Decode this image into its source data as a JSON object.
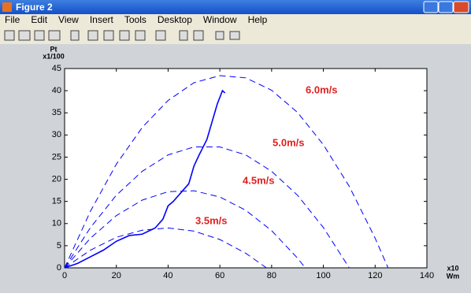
{
  "window": {
    "title": "Figure 2",
    "menu": [
      "File",
      "Edit",
      "View",
      "Insert",
      "Tools",
      "Desktop",
      "Window",
      "Help"
    ]
  },
  "chart_data": {
    "type": "line",
    "xlabel": [
      "x10",
      "Wm"
    ],
    "ylabel": [
      "Pt",
      "x1/100"
    ],
    "xlim": [
      0,
      140
    ],
    "xticks": [
      0,
      20,
      40,
      60,
      80,
      100,
      120,
      140
    ],
    "ylim": [
      0,
      45
    ],
    "yticks": [
      0,
      5,
      10,
      15,
      20,
      25,
      30,
      35,
      40,
      45
    ],
    "series": [
      {
        "color": "#0000ff",
        "linestyle": "dashed",
        "x": [
          0,
          10,
          20,
          30,
          40,
          50,
          60,
          70,
          80,
          90,
          100,
          110,
          120,
          125
        ],
        "values": [
          0,
          12.8,
          23.4,
          31.7,
          37.8,
          41.8,
          43.4,
          42.9,
          40.1,
          35.1,
          27.8,
          18.4,
          6.7,
          0
        ]
      },
      {
        "color": "#0000ff",
        "linestyle": "dashed",
        "x": [
          0,
          10,
          20,
          30,
          40,
          50,
          60,
          70,
          80,
          90,
          100,
          110
        ],
        "values": [
          0,
          9.1,
          16.4,
          21.8,
          25.5,
          27.3,
          27.3,
          25.5,
          21.8,
          16.4,
          9.1,
          0
        ]
      },
      {
        "color": "#0000ff",
        "linestyle": "dashed",
        "x": [
          0,
          10,
          20,
          30,
          40,
          50,
          60,
          70,
          80,
          90,
          93
        ],
        "values": [
          0,
          6.7,
          11.8,
          15.3,
          17.2,
          17.4,
          16.0,
          13.0,
          8.4,
          2.2,
          0
        ]
      },
      {
        "color": "#0000ff",
        "linestyle": "dashed",
        "x": [
          0,
          10,
          20,
          30,
          40,
          50,
          60,
          70,
          78
        ],
        "values": [
          0,
          4.0,
          6.9,
          8.5,
          9.0,
          8.3,
          6.4,
          3.3,
          0
        ]
      },
      {
        "color": "#0000ff",
        "linestyle": "solid",
        "x": [
          0,
          5,
          10,
          15,
          20,
          25,
          30,
          35,
          38,
          40,
          42,
          45,
          48,
          50,
          52,
          55,
          57,
          59,
          61,
          62
        ],
        "values": [
          0,
          1,
          2.5,
          4,
          6,
          7.3,
          7.6,
          9,
          11,
          14,
          15,
          17,
          19,
          23,
          25.5,
          29,
          33,
          37,
          40,
          39.5
        ]
      }
    ],
    "annotations": [
      "6.0m/s",
      "5.0m/s",
      "4.5m/s",
      "3.5m/s"
    ],
    "annotation_color": "#e02020"
  }
}
